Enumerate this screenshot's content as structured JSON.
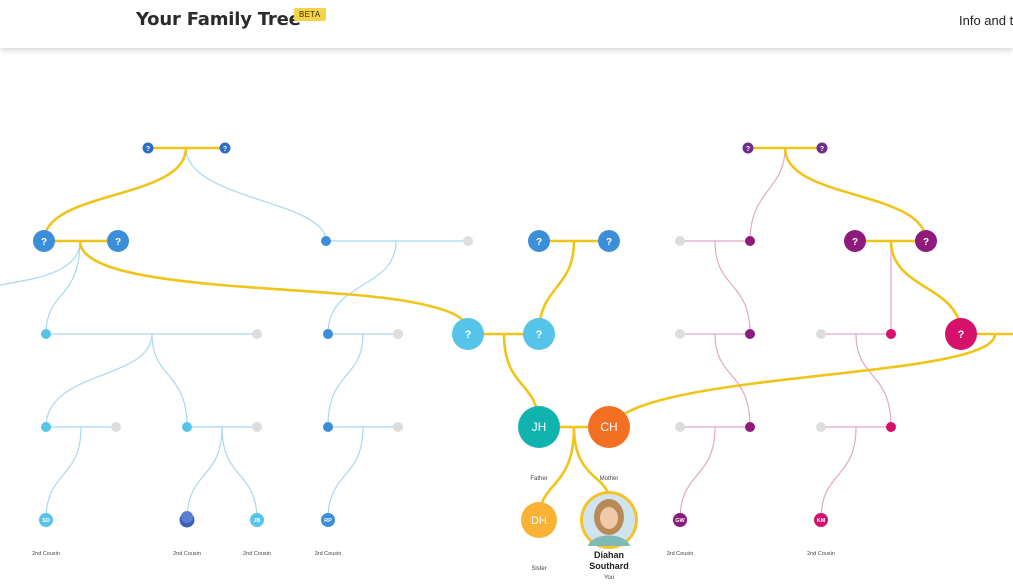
{
  "header": {
    "title": "Your Family Tree",
    "badge": "BETA",
    "info_link": "Info and t"
  },
  "colors": {
    "accent_line": "#f0c419",
    "paternal_dark": "#3a8fd8",
    "paternal_light": "#56c4e8",
    "maternal_dark": "#8e1a7c",
    "maternal_pink": "#d6116b",
    "line_blue": "#a9d8ee",
    "line_pink": "#e3a6c8",
    "unknown_gray": "#dddddd",
    "father": "#10b3ad",
    "mother": "#f36f21",
    "sister": "#f9b233"
  },
  "nodes": {
    "unknown_marker": "?",
    "father_initials": "JH",
    "mother_initials": "CH",
    "sister_initials": "DH",
    "cousins": [
      {
        "initials": "SD",
        "label": "2nd Cousin"
      },
      {
        "initials": "",
        "label": "2nd Cousin"
      },
      {
        "initials": "JB",
        "label": "2nd Cousin"
      },
      {
        "initials": "RP",
        "label": "3rd Cousin"
      },
      {
        "initials": "GW",
        "label": "3rd Cousin"
      },
      {
        "initials": "KM",
        "label": "2nd Cousin"
      }
    ]
  },
  "labels": {
    "father": "Father",
    "mother": "Mother",
    "sister": "Sister",
    "you_first": "Diahan",
    "you_last": "Southard",
    "you": "You"
  }
}
